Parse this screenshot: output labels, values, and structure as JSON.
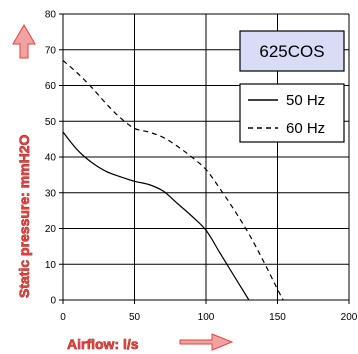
{
  "model_label": "625COS",
  "colors": {
    "model_box_fill": "#d9dcf5",
    "axis_title_red": "#e8403a",
    "arrow_fill": "#f0a3a0",
    "grid": "#000000"
  },
  "chart_data": {
    "type": "line",
    "xlabel": "Airflow: l/s",
    "ylabel": "Static pressure: mmH2O",
    "xlim": [
      0,
      200
    ],
    "ylim": [
      0,
      80
    ],
    "xticks": [
      "0",
      "50",
      "100",
      "150",
      "200"
    ],
    "yticks": [
      "0",
      "10",
      "20",
      "30",
      "40",
      "50",
      "60",
      "70",
      "80"
    ],
    "grid": true,
    "legend_position": "top-right",
    "series": [
      {
        "name": "50 Hz",
        "line_style": "solid",
        "x": [
          0,
          10,
          20,
          30,
          40,
          50,
          60,
          70,
          80,
          90,
          100,
          110,
          120,
          130
        ],
        "y": [
          47,
          42,
          38.5,
          36,
          34.5,
          33.2,
          32.3,
          30.5,
          27,
          23.5,
          19.5,
          13,
          6.5,
          0
        ]
      },
      {
        "name": "60 Hz",
        "line_style": "dashed",
        "x": [
          0,
          10,
          20,
          30,
          40,
          50,
          60,
          70,
          80,
          90,
          100,
          110,
          120,
          130,
          140,
          150,
          154
        ],
        "y": [
          67,
          63.5,
          59.5,
          55,
          51,
          48,
          47,
          45.5,
          43,
          40,
          36.5,
          31,
          25,
          18.5,
          11,
          3,
          0
        ]
      }
    ]
  }
}
